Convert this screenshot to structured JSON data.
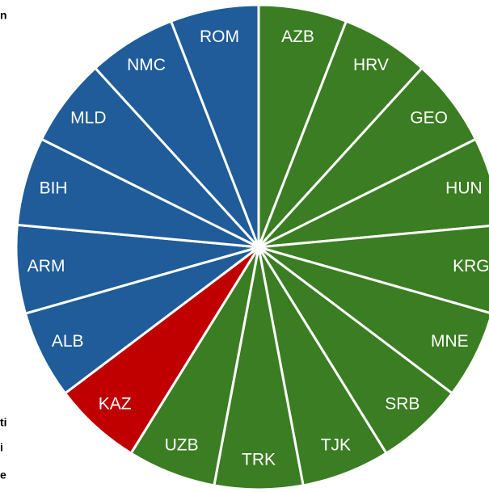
{
  "chart_data": {
    "type": "pie",
    "categories": [
      "AZB",
      "HRV",
      "GEO",
      "HUN",
      "KRG",
      "MNE",
      "SRB",
      "TJK",
      "TRK",
      "UZB",
      "KAZ",
      "ALB",
      "ARM",
      "BIH",
      "MLD",
      "NMC",
      "ROM"
    ],
    "values": [
      1,
      1,
      1,
      1,
      1,
      1,
      1,
      1,
      1,
      1,
      1,
      1,
      1,
      1,
      1,
      1,
      1
    ],
    "colors": [
      "#3a7d22",
      "#3a7d22",
      "#3a7d22",
      "#3a7d22",
      "#3a7d22",
      "#3a7d22",
      "#3a7d22",
      "#3a7d22",
      "#3a7d22",
      "#3a7d22",
      "#c00000",
      "#1f5c99",
      "#1f5c99",
      "#1f5c99",
      "#1f5c99",
      "#1f5c99",
      "#1f5c99"
    ],
    "side_text": [
      "n",
      "ti",
      "i",
      "e"
    ]
  }
}
